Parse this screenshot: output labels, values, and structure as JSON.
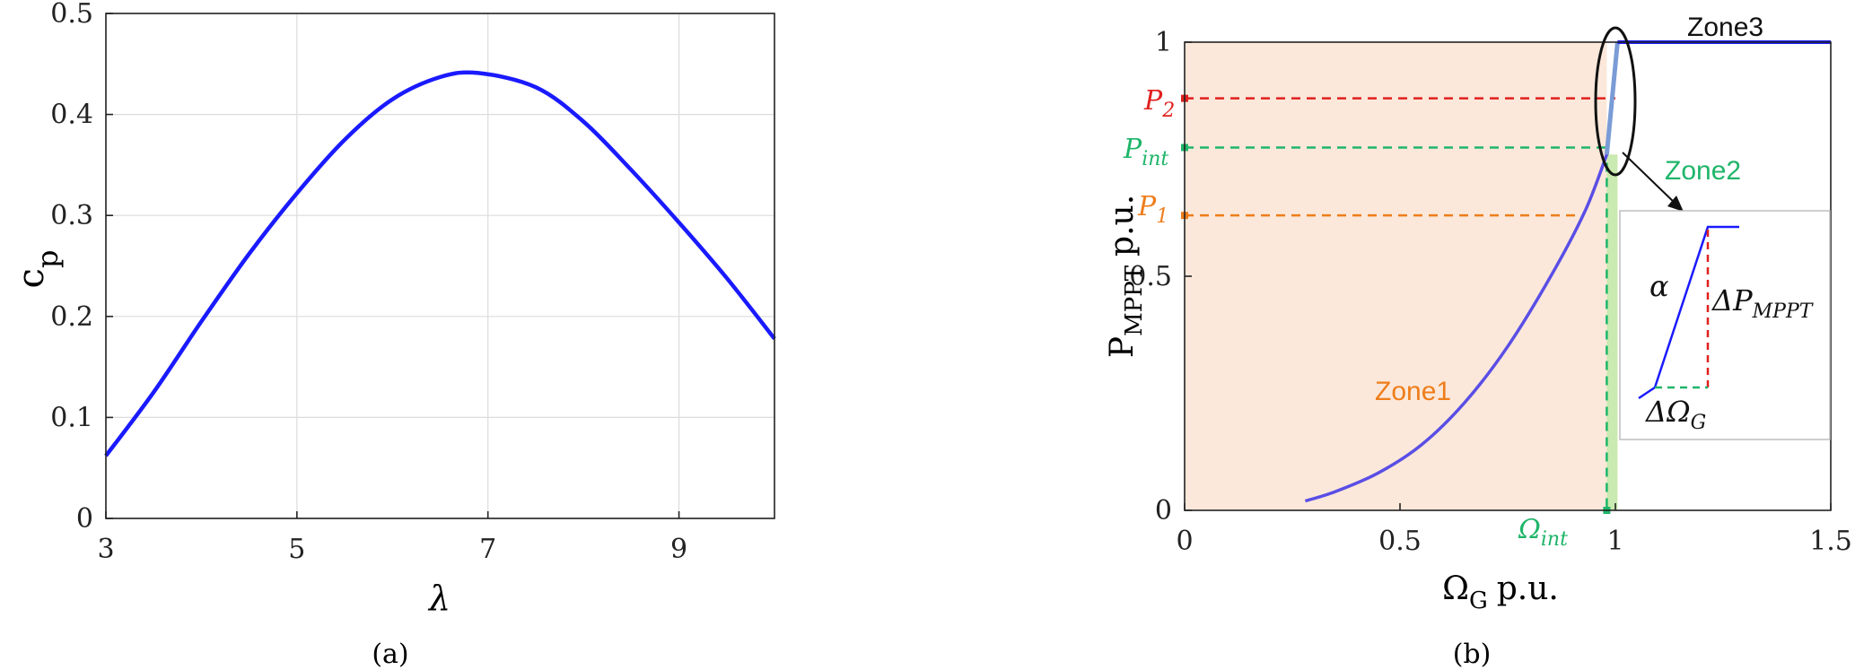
{
  "chart_data": [
    {
      "type": "line",
      "panel_label": "(a)",
      "xlabel": "λ",
      "ylabel_main": "c",
      "ylabel_sub": "p",
      "xlim": [
        3,
        10
      ],
      "ylim": [
        0,
        0.5
      ],
      "xticks": [
        3,
        5,
        7,
        9
      ],
      "xtick_labels": [
        "3",
        "5",
        "7",
        "9"
      ],
      "yticks": [
        0,
        0.1,
        0.2,
        0.3,
        0.4,
        0.5
      ],
      "ytick_labels": [
        "0",
        "0.1",
        "0.2",
        "0.3",
        "0.4",
        "0.5"
      ],
      "grid": true,
      "line_color": "#1a1aff",
      "series": [
        {
          "x": [
            3.0,
            3.5,
            4.0,
            4.5,
            5.0,
            5.5,
            6.0,
            6.5,
            6.9,
            7.5,
            8.0,
            8.5,
            9.0,
            9.5,
            10.0
          ],
          "values": [
            0.062,
            0.125,
            0.195,
            0.262,
            0.322,
            0.375,
            0.415,
            0.437,
            0.441,
            0.427,
            0.393,
            0.345,
            0.293,
            0.238,
            0.178
          ]
        }
      ]
    },
    {
      "type": "line",
      "panel_label": "(b)",
      "xlabel_main": "Ω",
      "xlabel_sub": "G",
      "xlabel_unit": "p.u.",
      "ylabel_main": "P",
      "ylabel_sub": "MPPT",
      "ylabel_unit": "p.u.",
      "xlim": [
        0,
        1.5
      ],
      "ylim": [
        0,
        1.0
      ],
      "xticks": [
        0,
        0.5,
        1,
        1.5
      ],
      "xtick_labels": [
        "0",
        "0.5",
        "1",
        "1.5"
      ],
      "yticks": [
        0,
        0.5,
        1
      ],
      "ytick_labels": [
        "0",
        "0.5",
        "1"
      ],
      "grid": false,
      "zone1_fill": "#fbe8da",
      "zone2_fill": "#c9eab0",
      "zones": {
        "zone1": "Zone1",
        "zone2": "Zone2",
        "zone3": "Zone3"
      },
      "series": [
        {
          "color": "#5a4ee6",
          "x": [
            0.28,
            0.35,
            0.45,
            0.55,
            0.65,
            0.75,
            0.85,
            0.93,
            0.98
          ],
          "values": [
            0.02,
            0.04,
            0.08,
            0.14,
            0.23,
            0.35,
            0.5,
            0.64,
            0.76
          ]
        },
        {
          "color": "#7a9cd6",
          "x": [
            0.98,
            1.005
          ],
          "values": [
            0.76,
            1.0
          ]
        },
        {
          "color": "#1a1aff",
          "x": [
            1.005,
            1.5
          ],
          "values": [
            1.0,
            1.0
          ]
        }
      ],
      "markers": {
        "P2": {
          "label_main": "P",
          "label_sub": "2",
          "value": 0.88,
          "color": "#e0201e"
        },
        "Pint": {
          "label_main": "P",
          "label_sub": "int",
          "value": 0.775,
          "color": "#1fb56a"
        },
        "P1": {
          "label_main": "P",
          "label_sub": "1",
          "value": 0.63,
          "color": "#ee7d1a"
        },
        "Omega_int": {
          "label_main": "Ω",
          "label_sub": "int",
          "value": 0.98,
          "color": "#1fb56a"
        }
      },
      "inset": {
        "alpha": "α",
        "delta_p_main": "ΔP",
        "delta_p_sub": "MPPT",
        "delta_omega_main": "ΔΩ",
        "delta_omega_sub": "G",
        "line_color": "#1a1aff",
        "dash_red": "#e0201e",
        "dash_green": "#1fb56a"
      }
    }
  ]
}
